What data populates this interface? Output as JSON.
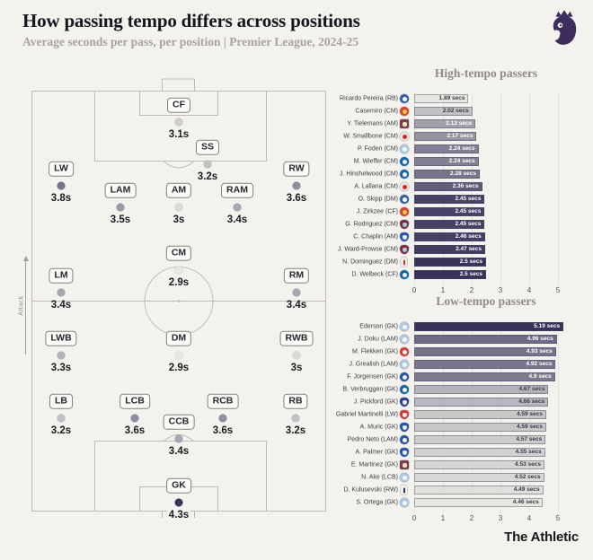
{
  "header": {
    "title": "How passing tempo differs across positions",
    "subtitle": "Average seconds per pass, per position | Premier League, 2024-25"
  },
  "footer": {
    "brand": "The Athletic"
  },
  "colors": {
    "background": "#f4f2ec",
    "pitch_line": "#bdbbb4",
    "scale_light": "#e8e6e0",
    "scale_dark": "#37335c",
    "logo_purple": "#3d2d5c"
  },
  "pitch": {
    "attack_label": "Attack",
    "color_scale": {
      "min": 2.9,
      "max": 4.3
    }
  },
  "clubs": {
    "leicester": {
      "shape": "circle",
      "bg": "#2d61ae",
      "fg": "#ffffff"
    },
    "man-utd": {
      "shape": "circle",
      "bg": "#d8422c",
      "fg": "#f3c642"
    },
    "aston-villa": {
      "shape": "square",
      "bg": "#7e3c4d",
      "fg": "#dfe6c3"
    },
    "southampton": {
      "shape": "circle",
      "bg": "#e8e6e0",
      "fg": "#d7282d"
    },
    "man-city": {
      "shape": "circle",
      "bg": "#a9cbe8",
      "fg": "#f7f7f4"
    },
    "brighton": {
      "shape": "circle",
      "bg": "#1166b2",
      "fg": "#f4f4f2"
    },
    "west-ham": {
      "shape": "shield",
      "bg": "#7d2c3e",
      "fg": "#a9cbe0"
    },
    "ipswich": {
      "shape": "shield",
      "bg": "#2059a6",
      "fg": "#f0f0ee"
    },
    "nottm-forest": {
      "shape": "tall",
      "bg": "#f0eee8",
      "fg": "#dd3330"
    },
    "brentford": {
      "shape": "circle",
      "bg": "#d93a30",
      "fg": "#f5f3ee"
    },
    "chelsea": {
      "shape": "circle",
      "bg": "#2457a3",
      "fg": "#eef2f6"
    },
    "everton": {
      "shape": "shield",
      "bg": "#2c3f94",
      "fg": "#f0f0f0"
    },
    "arsenal": {
      "shape": "shield",
      "bg": "#d8363a",
      "fg": "#f5f0e6"
    },
    "tottenham": {
      "shape": "tall",
      "bg": "#f2f1ec",
      "fg": "#22336b"
    }
  },
  "chart_data": [
    {
      "type": "bar",
      "title": "High-tempo passers",
      "xlim": [
        0,
        5
      ],
      "ticks": [
        0,
        1,
        2,
        3,
        4,
        5
      ],
      "unit": "secs",
      "color_scale": {
        "min": 1.89,
        "max": 2.5
      },
      "rows": [
        {
          "name": "Ricardo Pereira (RB)",
          "value": 1.89,
          "label": "1.89 secs",
          "club": "leicester"
        },
        {
          "name": "Casemiro (CM)",
          "value": 2.02,
          "label": "2.02 secs",
          "club": "man-utd"
        },
        {
          "name": "Y. Tielemans (AM)",
          "value": 2.13,
          "label": "2.13 secs",
          "club": "aston-villa"
        },
        {
          "name": "W. Smallbone (CM)",
          "value": 2.17,
          "label": "2.17 secs",
          "club": "southampton"
        },
        {
          "name": "P. Foden (CM)",
          "value": 2.24,
          "label": "2.24 secs",
          "club": "man-city"
        },
        {
          "name": "M. Wieffer (CM)",
          "value": 2.24,
          "label": "2.24 secs",
          "club": "brighton"
        },
        {
          "name": "J. Hinshelwood (CM)",
          "value": 2.28,
          "label": "2.28 secs",
          "club": "brighton"
        },
        {
          "name": "A. Lallana (CM)",
          "value": 2.36,
          "label": "2.36 secs",
          "club": "southampton"
        },
        {
          "name": "O. Skipp (DM)",
          "value": 2.45,
          "label": "2.45 secs",
          "club": "leicester"
        },
        {
          "name": "J. Zirkzee (CF)",
          "value": 2.45,
          "label": "2.45 secs",
          "club": "man-utd"
        },
        {
          "name": "G. Rodriguez (CM)",
          "value": 2.45,
          "label": "2.45 secs",
          "club": "west-ham"
        },
        {
          "name": "C. Chaplin (AM)",
          "value": 2.46,
          "label": "2.46 secs",
          "club": "ipswich"
        },
        {
          "name": "J. Ward-Prowse (CM)",
          "value": 2.47,
          "label": "2.47 secs",
          "club": "west-ham"
        },
        {
          "name": "N. Dominguez (DM)",
          "value": 2.5,
          "label": "2.5 secs",
          "club": "nottm-forest"
        },
        {
          "name": "D. Welbeck (CF)",
          "value": 2.5,
          "label": "2.5 secs",
          "club": "brighton"
        }
      ]
    },
    {
      "type": "bar",
      "title": "Low-tempo passers",
      "xlim": [
        0,
        5
      ],
      "ticks": [
        0,
        1,
        2,
        3,
        4,
        5
      ],
      "unit": "secs",
      "color_scale": {
        "min": 4.46,
        "max": 5.19
      },
      "rows": [
        {
          "name": "Ederson (GK)",
          "value": 5.19,
          "label": "5.19 secs",
          "club": "man-city"
        },
        {
          "name": "J. Doku (LAM)",
          "value": 4.96,
          "label": "4.96 secs",
          "club": "man-city"
        },
        {
          "name": "M. Flekken (GK)",
          "value": 4.93,
          "label": "4.93 secs",
          "club": "brentford"
        },
        {
          "name": "J. Grealish (LAM)",
          "value": 4.92,
          "label": "4.92 secs",
          "club": "man-city"
        },
        {
          "name": "F. Jorgensen (GK)",
          "value": 4.9,
          "label": "4.9 secs",
          "club": "chelsea"
        },
        {
          "name": "B. Verbruggen (GK)",
          "value": 4.67,
          "label": "4.67 secs",
          "club": "brighton"
        },
        {
          "name": "J. Pickford (GK)",
          "value": 4.66,
          "label": "4.66 secs",
          "club": "everton"
        },
        {
          "name": "Gabriel Martinelli (LW)",
          "value": 4.59,
          "label": "4.59 secs",
          "club": "arsenal"
        },
        {
          "name": "A. Muric (GK)",
          "value": 4.59,
          "label": "4.59 secs",
          "club": "ipswich"
        },
        {
          "name": "Pedro Neto (LAM)",
          "value": 4.57,
          "label": "4.57 secs",
          "club": "chelsea"
        },
        {
          "name": "A. Palmer (GK)",
          "value": 4.55,
          "label": "4.55 secs",
          "club": "ipswich"
        },
        {
          "name": "E. Martinez (GK)",
          "value": 4.53,
          "label": "4.53 secs",
          "club": "aston-villa"
        },
        {
          "name": "N. Ake (LCB)",
          "value": 4.52,
          "label": "4.52 secs",
          "club": "man-city"
        },
        {
          "name": "D. Kulusevski (RW)",
          "value": 4.49,
          "label": "4.49 secs",
          "club": "tottenham"
        },
        {
          "name": "S. Ortega (GK)",
          "value": 4.46,
          "label": "4.46 secs",
          "club": "man-city"
        }
      ]
    },
    {
      "type": "pitch-map",
      "title": "Average seconds per pass, per position",
      "positions": [
        {
          "code": "CF",
          "value": 3.1,
          "label": "3.1s",
          "x": 164,
          "y": 23
        },
        {
          "code": "SS",
          "value": 3.2,
          "label": "3.2s",
          "x": 196,
          "y": 70
        },
        {
          "code": "LW",
          "value": 3.8,
          "label": "3.8s",
          "x": 33,
          "y": 94
        },
        {
          "code": "RW",
          "value": 3.6,
          "label": "3.6s",
          "x": 295,
          "y": 94
        },
        {
          "code": "LAM",
          "value": 3.5,
          "label": "3.5s",
          "x": 99,
          "y": 118
        },
        {
          "code": "AM",
          "value": 3.0,
          "label": "3s",
          "x": 164,
          "y": 118
        },
        {
          "code": "RAM",
          "value": 3.4,
          "label": "3.4s",
          "x": 229,
          "y": 118
        },
        {
          "code": "CM",
          "value": 2.9,
          "label": "2.9s",
          "x": 164,
          "y": 188
        },
        {
          "code": "LM",
          "value": 3.4,
          "label": "3.4s",
          "x": 33,
          "y": 213
        },
        {
          "code": "RM",
          "value": 3.4,
          "label": "3.4s",
          "x": 295,
          "y": 213
        },
        {
          "code": "LWB",
          "value": 3.3,
          "label": "3.3s",
          "x": 33,
          "y": 283
        },
        {
          "code": "DM",
          "value": 2.9,
          "label": "2.9s",
          "x": 164,
          "y": 283
        },
        {
          "code": "RWB",
          "value": 3.0,
          "label": "3s",
          "x": 295,
          "y": 283
        },
        {
          "code": "LB",
          "value": 3.2,
          "label": "3.2s",
          "x": 33,
          "y": 353
        },
        {
          "code": "LCB",
          "value": 3.6,
          "label": "3.6s",
          "x": 115,
          "y": 353
        },
        {
          "code": "RCB",
          "value": 3.6,
          "label": "3.6s",
          "x": 213,
          "y": 353
        },
        {
          "code": "RB",
          "value": 3.2,
          "label": "3.2s",
          "x": 294,
          "y": 353
        },
        {
          "code": "CCB",
          "value": 3.4,
          "label": "3.4s",
          "x": 164,
          "y": 376
        },
        {
          "code": "GK",
          "value": 4.3,
          "label": "4.3s",
          "x": 164,
          "y": 447
        }
      ]
    }
  ]
}
